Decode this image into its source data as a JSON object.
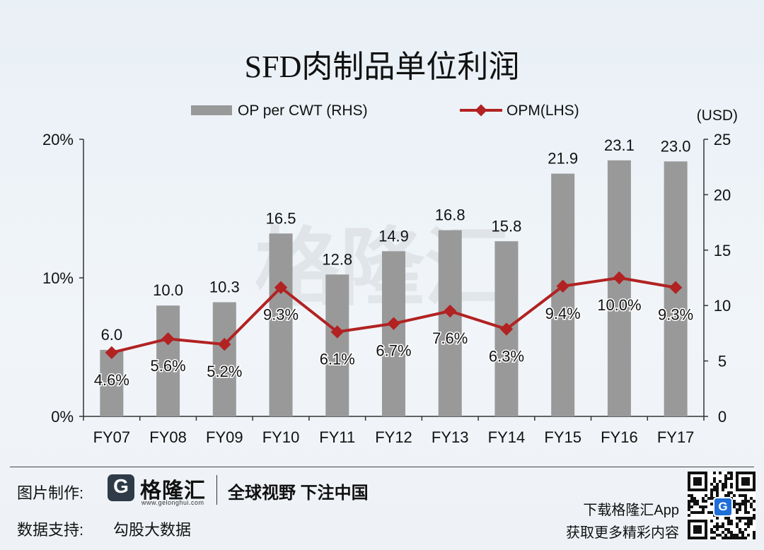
{
  "title": "SFD肉制品单位利润",
  "chart_data": {
    "type": "bar+line",
    "categories": [
      "FY07",
      "FY08",
      "FY09",
      "FY10",
      "FY11",
      "FY12",
      "FY13",
      "FY14",
      "FY15",
      "FY16",
      "FY17"
    ],
    "series": [
      {
        "name": "OP per CWT (RHS)",
        "kind": "bar",
        "axis": "right",
        "color": "#999999",
        "values": [
          6.0,
          10.0,
          10.3,
          16.5,
          12.8,
          14.9,
          16.8,
          15.8,
          21.9,
          23.1,
          23.0
        ],
        "labels": [
          "6.0",
          "10.0",
          "10.3",
          "16.5",
          "12.8",
          "14.9",
          "16.8",
          "15.8",
          "21.9",
          "23.1",
          "23.0"
        ]
      },
      {
        "name": "OPM(LHS)",
        "kind": "line",
        "axis": "left",
        "color": "#b22222",
        "values": [
          4.6,
          5.6,
          5.2,
          9.3,
          6.1,
          6.7,
          7.6,
          6.3,
          9.4,
          10.0,
          9.3
        ],
        "labels": [
          "4.6%",
          "5.6%",
          "5.2%",
          "9.3%",
          "6.1%",
          "6.7%",
          "7.6%",
          "6.3%",
          "9.4%",
          "10.0%",
          "9.3%"
        ]
      }
    ],
    "left_axis": {
      "ylim": [
        0,
        20
      ],
      "ticks": [
        0,
        10,
        20
      ],
      "tick_labels": [
        "0%",
        "10%",
        "20%"
      ]
    },
    "right_axis": {
      "ylim": [
        0,
        25
      ],
      "ticks": [
        0,
        5,
        10,
        15,
        20,
        25
      ],
      "tick_labels": [
        "0",
        "5",
        "10",
        "15",
        "20",
        "25"
      ],
      "unit": "(USD)"
    },
    "legend": {
      "position": "top"
    },
    "watermark": "格隆汇"
  },
  "footer": {
    "made_by_label": "图片制作:",
    "logo_letter": "G",
    "logo_name": "格隆汇",
    "logo_url": "www.gelonghui.com",
    "slogan": "全球视野 下注中国",
    "data_support_label": "数据支持:",
    "data_source": "勾股大数据",
    "app_line1": "下载格隆汇App",
    "app_line2": "获取更多精彩内容",
    "qr_badge": "G"
  },
  "colors": {
    "bar": "#999999",
    "line": "#b22222",
    "axis": "#333333"
  }
}
